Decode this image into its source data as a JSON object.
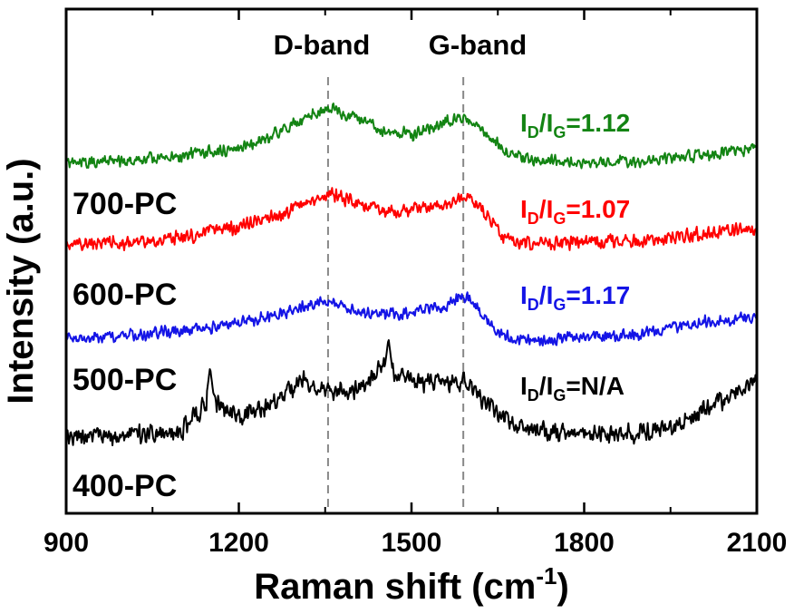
{
  "chart_data": {
    "type": "line",
    "xlabel": "Raman shift (cm",
    "xlabel_sup": "-1",
    "xlabel_close": ")",
    "ylabel": "Intensity (a.u.)",
    "xlim": [
      900,
      2100
    ],
    "xticks": [
      900,
      1200,
      1500,
      1800,
      2100
    ],
    "xtick_labels": [
      "900",
      "1200",
      "1500",
      "1800",
      "2100"
    ],
    "minor_tick_step": 150,
    "y_ticks_shown": false,
    "grid": false,
    "reference_lines": [
      {
        "name": "D-band",
        "x": 1355,
        "style": "dashed",
        "color": "#888888"
      },
      {
        "name": "G-band",
        "x": 1590,
        "style": "dashed",
        "color": "#888888"
      }
    ],
    "band_labels": {
      "d": "D-band",
      "g": "G-band"
    },
    "series": [
      {
        "name": "700-PC",
        "color": "#138413",
        "ratio": {
          "base": "I",
          "sub_d": "D",
          "slash": "/",
          "sub_g": "G",
          "tail": "=1.12"
        },
        "profile": [
          [
            900,
            180
          ],
          [
            1000,
            178
          ],
          [
            1100,
            172
          ],
          [
            1200,
            163
          ],
          [
            1280,
            143
          ],
          [
            1330,
            125
          ],
          [
            1355,
            118
          ],
          [
            1400,
            130
          ],
          [
            1450,
            144
          ],
          [
            1500,
            148
          ],
          [
            1560,
            134
          ],
          [
            1590,
            127
          ],
          [
            1620,
            142
          ],
          [
            1660,
            165
          ],
          [
            1700,
            175
          ],
          [
            1800,
            180
          ],
          [
            1900,
            178
          ],
          [
            2000,
            171
          ],
          [
            2100,
            163
          ]
        ],
        "noise": 8,
        "seed": 11
      },
      {
        "name": "600-PC",
        "color": "#ff0000",
        "ratio": {
          "base": "I",
          "sub_d": "D",
          "slash": "/",
          "sub_g": "G",
          "tail": "=1.07"
        },
        "profile": [
          [
            900,
            270
          ],
          [
            1000,
            268
          ],
          [
            1100,
            262
          ],
          [
            1200,
            250
          ],
          [
            1280,
            235
          ],
          [
            1330,
            220
          ],
          [
            1360,
            214
          ],
          [
            1400,
            224
          ],
          [
            1450,
            232
          ],
          [
            1500,
            232
          ],
          [
            1560,
            225
          ],
          [
            1595,
            215
          ],
          [
            1620,
            228
          ],
          [
            1660,
            262
          ],
          [
            1700,
            268
          ],
          [
            1800,
            267
          ],
          [
            1900,
            265
          ],
          [
            2000,
            258
          ],
          [
            2100,
            252
          ]
        ],
        "noise": 9,
        "seed": 23
      },
      {
        "name": "500-PC",
        "color": "#1414e6",
        "ratio": {
          "base": "I",
          "sub_d": "D",
          "slash": "/",
          "sub_g": "G",
          "tail": "=1.17"
        },
        "profile": [
          [
            900,
            375
          ],
          [
            1000,
            370
          ],
          [
            1100,
            365
          ],
          [
            1200,
            356
          ],
          [
            1280,
            345
          ],
          [
            1330,
            335
          ],
          [
            1350,
            330
          ],
          [
            1400,
            342
          ],
          [
            1450,
            347
          ],
          [
            1500,
            346
          ],
          [
            1560,
            337
          ],
          [
            1595,
            327
          ],
          [
            1620,
            345
          ],
          [
            1660,
            370
          ],
          [
            1700,
            375
          ],
          [
            1800,
            372
          ],
          [
            1900,
            368
          ],
          [
            2000,
            355
          ],
          [
            2100,
            350
          ]
        ],
        "noise": 8,
        "seed": 37
      },
      {
        "name": "400-PC",
        "color": "#000000",
        "ratio": {
          "base": "I",
          "sub_d": "D",
          "slash": "/",
          "sub_g": "G",
          "tail": "=N/A"
        },
        "profile": [
          [
            900,
            485
          ],
          [
            1000,
            480
          ],
          [
            1100,
            475
          ],
          [
            1150,
            440
          ],
          [
            1200,
            460
          ],
          [
            1260,
            445
          ],
          [
            1310,
            420
          ],
          [
            1350,
            430
          ],
          [
            1400,
            430
          ],
          [
            1450,
            405
          ],
          [
            1500,
            420
          ],
          [
            1560,
            425
          ],
          [
            1590,
            418
          ],
          [
            1620,
            440
          ],
          [
            1660,
            460
          ],
          [
            1700,
            475
          ],
          [
            1800,
            478
          ],
          [
            1900,
            478
          ],
          [
            1950,
            470
          ],
          [
            2000,
            455
          ],
          [
            2100,
            420
          ]
        ],
        "noise": 13,
        "seed": 53,
        "spikes": [
          [
            1150,
            405
          ],
          [
            1460,
            373
          ]
        ]
      }
    ]
  }
}
